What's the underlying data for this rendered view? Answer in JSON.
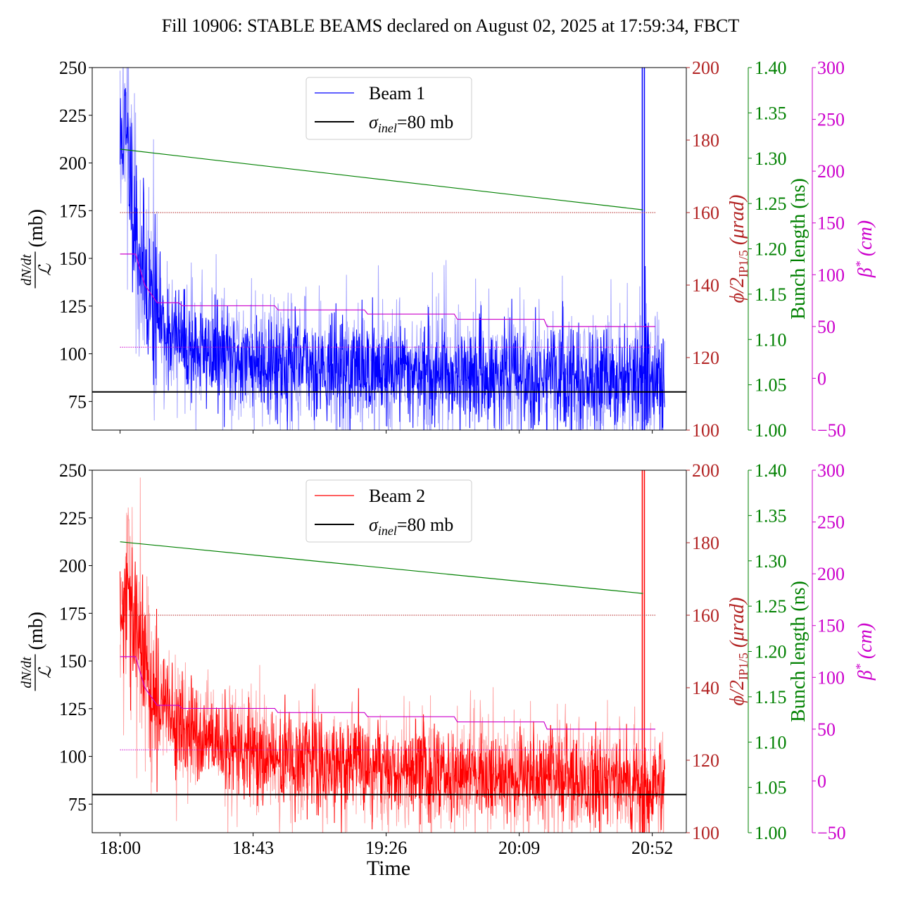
{
  "figure": {
    "title": "Fill 10906: STABLE BEAMS declared on August 02, 2025 at 17:59:34, FBCT",
    "xlabel": "Time"
  },
  "colors": {
    "beam1": "#0000ff",
    "beam1_light": "#9999ff",
    "beam2": "#ff0000",
    "beam2_light": "#ff9999",
    "reference": "#000000",
    "crossing_angle": "#b22222",
    "bunch_length": "#008000",
    "beta_star": "#cc00cc"
  },
  "axes": {
    "left": {
      "label_fraction_num": "dN/dt",
      "label_fraction_den": "ℒ",
      "label_unit": "(mb)",
      "ylim": [
        60,
        250
      ],
      "ticks": [
        "75",
        "100",
        "125",
        "150",
        "175",
        "200",
        "225",
        "250"
      ]
    },
    "crossing_angle": {
      "label_main": "ϕ/2",
      "label_sub": "IP1/5",
      "label_unit": "(μrad)",
      "ylim": [
        100,
        200
      ],
      "ticks": [
        "100",
        "120",
        "140",
        "160",
        "180",
        "200"
      ]
    },
    "bunch_length": {
      "label": "Bunch length (ns)",
      "ylim": [
        1.0,
        1.4
      ],
      "ticks": [
        "1.00",
        "1.05",
        "1.10",
        "1.15",
        "1.20",
        "1.25",
        "1.30",
        "1.35",
        "1.40"
      ]
    },
    "beta_star": {
      "label_main": "β",
      "label_sup": "*",
      "label_unit": "(cm)",
      "ylim": [
        -50,
        300
      ],
      "ticks": [
        "−50",
        "0",
        "50",
        "100",
        "150",
        "200",
        "250",
        "300"
      ]
    },
    "x": {
      "ticks": [
        "18:00",
        "18:43",
        "19:26",
        "20:09",
        "20:52"
      ]
    }
  },
  "chart_data": [
    {
      "type": "line",
      "panel": "top",
      "x_unit": "minutes after 18:00",
      "xlim": [
        -9,
        183
      ],
      "legend": {
        "placement": "upper-center",
        "entries": [
          {
            "label": "Beam 1",
            "color": "#0000ff"
          },
          {
            "label_main": "σ",
            "label_sub": "inel",
            "label_rest": "=80 mb",
            "color": "#000000"
          }
        ]
      },
      "series": [
        {
          "name": "Beam 1",
          "axis": "left",
          "anchors": [
            [
              0,
              205
            ],
            [
              1,
              222
            ],
            [
              2,
              210
            ],
            [
              4,
              185
            ],
            [
              6,
              158
            ],
            [
              8,
              140
            ],
            [
              10,
              128
            ],
            [
              13,
              118
            ],
            [
              17,
              110
            ],
            [
              22,
              104
            ],
            [
              30,
              99
            ],
            [
              45,
              96
            ],
            [
              60,
              94
            ],
            [
              90,
              91
            ],
            [
              120,
              89
            ],
            [
              150,
              87
            ],
            [
              170,
              86
            ],
            [
              176,
              85
            ]
          ],
          "noise_std_dark": 13,
          "noise_std_light": 19,
          "spike_at": 169,
          "spike_value": 250
        },
        {
          "name": "σinel=80 mb",
          "axis": "left",
          "x": [
            -9,
            183
          ],
          "values": [
            80,
            80
          ]
        },
        {
          "name": "ϕ/2",
          "axis": "crossing_angle",
          "x": [
            0,
            173
          ],
          "values": [
            160,
            160
          ]
        },
        {
          "name": "Bunch length",
          "axis": "bunch_length",
          "x": [
            0,
            169
          ],
          "values": [
            1.31,
            1.243
          ]
        },
        {
          "name": "β*",
          "axis": "beta_star",
          "steps": [
            [
              0,
              120
            ],
            [
              5,
              120
            ],
            [
              8,
              90
            ],
            [
              12,
              73
            ],
            [
              19,
              73
            ],
            [
              20,
              70
            ],
            [
              50,
              70
            ],
            [
              51,
              66
            ],
            [
              79,
              66
            ],
            [
              80,
              62
            ],
            [
              108,
              62
            ],
            [
              109,
              57
            ],
            [
              137,
              57
            ],
            [
              138,
              50
            ],
            [
              173,
              50
            ]
          ],
          "dotted_level": 30
        }
      ]
    },
    {
      "type": "line",
      "panel": "bottom",
      "x_unit": "minutes after 18:00",
      "xlim": [
        -9,
        183
      ],
      "legend": {
        "placement": "upper-center",
        "entries": [
          {
            "label": "Beam 2",
            "color": "#ff0000"
          },
          {
            "label_main": "σ",
            "label_sub": "inel",
            "label_rest": "=80 mb",
            "color": "#000000"
          }
        ]
      },
      "series": [
        {
          "name": "Beam 2",
          "axis": "left",
          "anchors": [
            [
              0,
              170
            ],
            [
              2,
              178
            ],
            [
              4,
              172
            ],
            [
              6,
              160
            ],
            [
              8,
              148
            ],
            [
              10,
              138
            ],
            [
              13,
              128
            ],
            [
              17,
              120
            ],
            [
              22,
              112
            ],
            [
              30,
              105
            ],
            [
              45,
              100
            ],
            [
              60,
              97
            ],
            [
              90,
              93
            ],
            [
              120,
              90
            ],
            [
              150,
              88
            ],
            [
              170,
              86
            ],
            [
              176,
              85
            ]
          ],
          "noise_std_dark": 12,
          "noise_std_light": 17,
          "spike_at": 169,
          "spike_value": 250
        },
        {
          "name": "σinel=80 mb",
          "axis": "left",
          "x": [
            -9,
            183
          ],
          "values": [
            80,
            80
          ]
        },
        {
          "name": "ϕ/2",
          "axis": "crossing_angle",
          "x": [
            0,
            173
          ],
          "values": [
            160,
            160
          ]
        },
        {
          "name": "Bunch length",
          "axis": "bunch_length",
          "x": [
            0,
            169
          ],
          "values": [
            1.321,
            1.264
          ]
        },
        {
          "name": "β*",
          "axis": "beta_star",
          "steps": [
            [
              0,
              120
            ],
            [
              5,
              120
            ],
            [
              8,
              90
            ],
            [
              12,
              73
            ],
            [
              19,
              73
            ],
            [
              20,
              70
            ],
            [
              50,
              70
            ],
            [
              51,
              66
            ],
            [
              79,
              66
            ],
            [
              80,
              62
            ],
            [
              108,
              62
            ],
            [
              109,
              57
            ],
            [
              137,
              57
            ],
            [
              138,
              50
            ],
            [
              173,
              50
            ]
          ],
          "dotted_level": 30
        }
      ]
    }
  ]
}
